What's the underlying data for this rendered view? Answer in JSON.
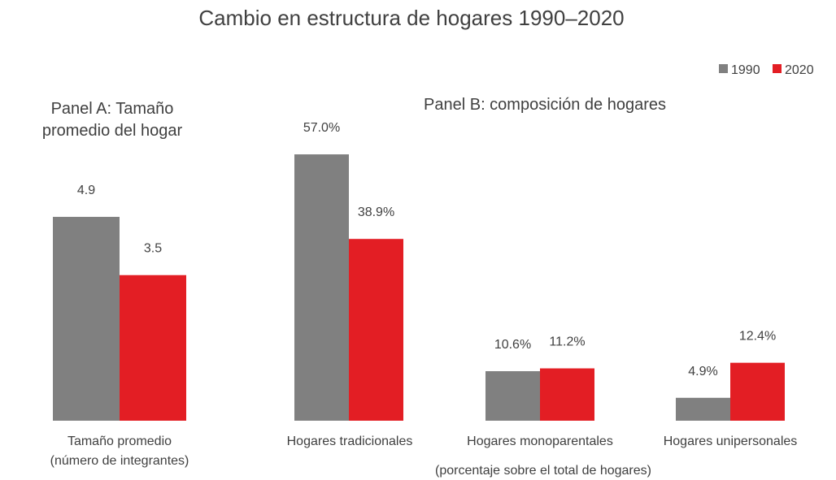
{
  "chart_data": {
    "type": "bar",
    "title": "Cambio en estructura de hogares 1990–2020",
    "legend": {
      "position": "top-right",
      "entries": [
        {
          "name": "1990",
          "color": "#808080"
        },
        {
          "name": "2020",
          "color": "#E31E24"
        }
      ]
    },
    "panels": [
      {
        "title_lines": [
          "Panel A: Tamaño",
          "promedio del hogar"
        ],
        "categories": [
          {
            "label_lines": [
              "Tamaño promedio",
              "(número de integrantes)"
            ]
          }
        ],
        "series": [
          {
            "name": "1990",
            "values": [
              4.9
            ],
            "labels": [
              "4.9"
            ]
          },
          {
            "name": "2020",
            "values": [
              3.5
            ],
            "labels": [
              "3.5"
            ]
          }
        ],
        "ylim": [
          0,
          8.2
        ]
      },
      {
        "title_lines": [
          "Panel B: composición de hogares"
        ],
        "xlabel": "(porcentaje sobre el total de hogares)",
        "categories": [
          {
            "label_lines": [
              "Hogares tradicionales"
            ]
          },
          {
            "label_lines": [
              "Hogares monoparentales"
            ]
          },
          {
            "label_lines": [
              "Hogares unipersonales"
            ]
          }
        ],
        "series": [
          {
            "name": "1990",
            "values": [
              57.0,
              10.6,
              4.9
            ],
            "labels": [
              "57.0%",
              "10.6%",
              "4.9%"
            ]
          },
          {
            "name": "2020",
            "values": [
              38.9,
              11.2,
              12.4
            ],
            "labels": [
              "38.9%",
              "11.2%",
              "12.4%"
            ]
          }
        ],
        "ylim": [
          0,
          73
        ]
      }
    ]
  }
}
